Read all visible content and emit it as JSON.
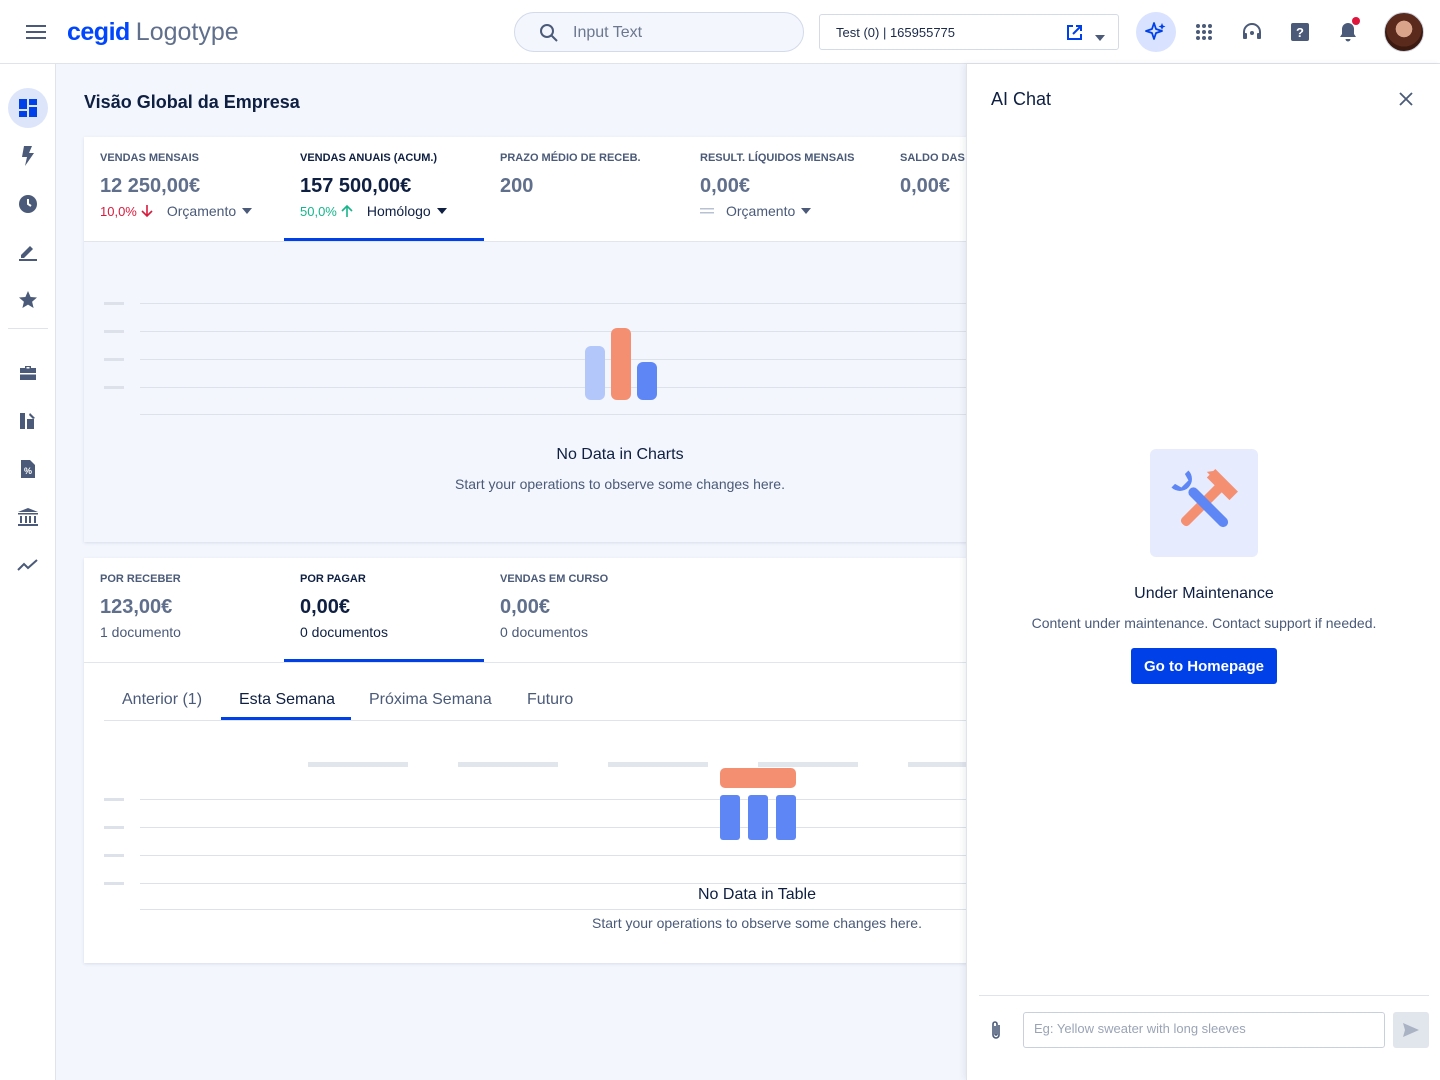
{
  "header": {
    "brand": "cegid",
    "logotype": "Logotype",
    "search_placeholder": "Input Text",
    "company_selector": "Test (0) | 165955775",
    "icons": [
      "menu-icon",
      "search-icon",
      "open-external-icon",
      "chevron-down-icon",
      "ai-sparkle-icon",
      "apps-grid-icon",
      "support-headset-icon",
      "help-icon",
      "bell-icon",
      "avatar"
    ]
  },
  "sidebar": {
    "items": [
      {
        "icon": "dashboard-icon",
        "active": true
      },
      {
        "icon": "flash-icon"
      },
      {
        "icon": "clock-icon"
      },
      {
        "icon": "pen-icon"
      },
      {
        "icon": "star-icon"
      },
      {
        "icon": "briefcase-icon"
      },
      {
        "icon": "document-edit-icon"
      },
      {
        "icon": "invoice-icon"
      },
      {
        "icon": "bank-icon"
      },
      {
        "icon": "trend-icon"
      }
    ]
  },
  "main": {
    "title": "Visão Global da Empresa",
    "kpis": [
      {
        "label": "VENDAS MENSAIS",
        "value": "12 250,00€",
        "pct": "10,0%",
        "trend": "down",
        "compare": "Orçamento"
      },
      {
        "label": "VENDAS ANUAIS (ACUM.)",
        "value": "157 500,00€",
        "pct": "50,0%",
        "trend": "up",
        "compare": "Homólogo",
        "selected": true
      },
      {
        "label": "PRAZO MÉDIO DE RECEB.",
        "value": "200"
      },
      {
        "label": "RESULT. LÍQUIDOS MENSAIS",
        "value": "0,00€",
        "trend": "flat",
        "compare": "Orçamento"
      },
      {
        "label": "SALDO DAS",
        "value": "0,00€"
      }
    ],
    "chart_empty": {
      "title": "No Data in Charts",
      "subtitle": "Start your operations to observe some changes here."
    },
    "payables": [
      {
        "label": "POR RECEBER",
        "value": "123,00€",
        "sub": "1 documento"
      },
      {
        "label": "POR PAGAR",
        "value": "0,00€",
        "sub": "0 documentos",
        "selected": true
      },
      {
        "label": "VENDAS EM CURSO",
        "value": "0,00€",
        "sub": "0 documentos"
      }
    ],
    "tabs": [
      "Anterior (1)",
      "Esta Semana",
      "Próxima Semana",
      "Futuro"
    ],
    "active_tab": "Esta Semana",
    "table_empty": {
      "title": "No Data in Table",
      "subtitle": "Start your operations to observe some changes here."
    }
  },
  "ai_chat": {
    "title": "AI Chat",
    "status_title": "Under Maintenance",
    "status_sub": "Content under maintenance. Contact support if needed.",
    "button": "Go to Homepage",
    "input_placeholder": "Eg: Yellow sweater with long sleeves"
  },
  "colors": {
    "accent": "#0040e8",
    "brand": "#0046fe",
    "negative": "#d81b3c",
    "positive": "#16b58a",
    "chart_orange": "#f58f72",
    "chart_blue": "#5e86f5",
    "chart_light_blue": "#b4c7fb"
  }
}
